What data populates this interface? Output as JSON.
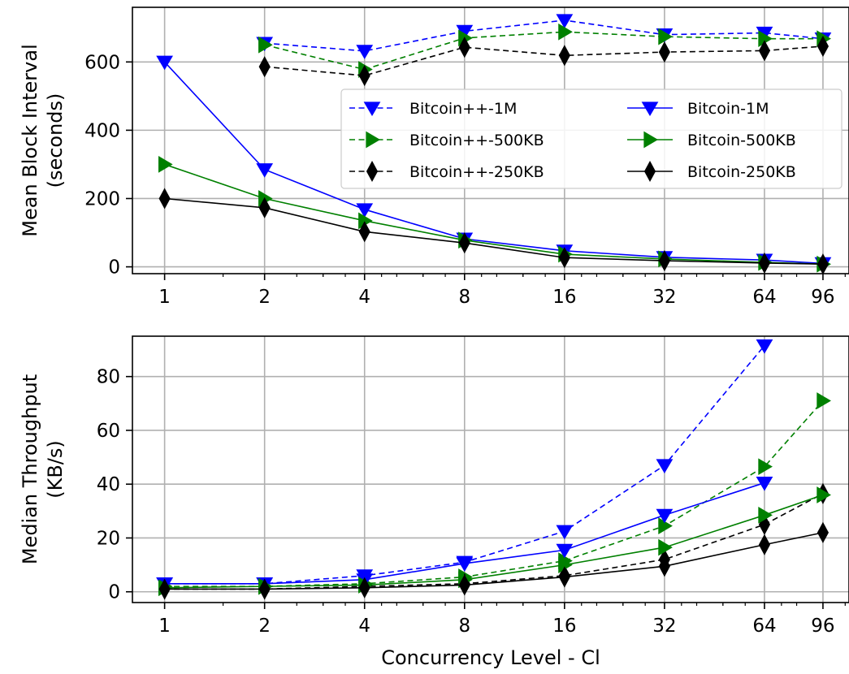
{
  "chart_data": [
    {
      "type": "line",
      "xscale": "log2",
      "x": [
        1,
        2,
        4,
        8,
        16,
        32,
        64,
        96
      ],
      "xticks": [
        "1",
        "2",
        "4",
        "8",
        "16",
        "32",
        "64",
        "96"
      ],
      "ylabel_line1": "Mean Block Interval",
      "ylabel_line2": "(seconds)",
      "xlabel": "",
      "ylim": [
        -20,
        760
      ],
      "yticks": [
        "0",
        "200",
        "400",
        "600"
      ],
      "grid": true,
      "legend_position": "center-right",
      "series": [
        {
          "name": "Bitcoin++-1M",
          "style": "dashed",
          "marker": "triangle-down",
          "color": "#0000ff",
          "x": [
            2,
            4,
            8,
            16,
            32,
            64,
            96
          ],
          "values": [
            655,
            632,
            690,
            722,
            680,
            685,
            668
          ]
        },
        {
          "name": "Bitcoin++-500KB",
          "style": "dashed",
          "marker": "triangle-right",
          "color": "#008000",
          "x": [
            2,
            4,
            8,
            16,
            32,
            64,
            96
          ],
          "values": [
            650,
            578,
            670,
            688,
            674,
            668,
            668
          ]
        },
        {
          "name": "Bitcoin++-250KB",
          "style": "dashed",
          "marker": "thin-diamond",
          "color": "#000000",
          "x": [
            2,
            4,
            8,
            16,
            32,
            64,
            96
          ],
          "values": [
            586,
            560,
            643,
            619,
            629,
            633,
            646
          ]
        },
        {
          "name": "Bitcoin-1M",
          "style": "solid",
          "marker": "triangle-down",
          "color": "#0000ff",
          "x": [
            1,
            2,
            4,
            8,
            16,
            32,
            64,
            96
          ],
          "values": [
            600,
            285,
            168,
            82,
            47,
            28,
            20,
            10
          ]
        },
        {
          "name": "Bitcoin-500KB",
          "style": "solid",
          "marker": "triangle-right",
          "color": "#008000",
          "x": [
            1,
            2,
            4,
            8,
            16,
            32,
            64,
            96
          ],
          "values": [
            300,
            200,
            135,
            78,
            37,
            23,
            13,
            8
          ]
        },
        {
          "name": "Bitcoin-250KB",
          "style": "solid",
          "marker": "thin-diamond",
          "color": "#000000",
          "x": [
            1,
            2,
            4,
            8,
            16,
            32,
            64,
            96
          ],
          "values": [
            200,
            173,
            103,
            70,
            27,
            18,
            11,
            8
          ]
        }
      ]
    },
    {
      "type": "line",
      "xscale": "log2",
      "x": [
        1,
        2,
        4,
        8,
        16,
        32,
        64,
        96
      ],
      "xticks": [
        "1",
        "2",
        "4",
        "8",
        "16",
        "32",
        "64",
        "96"
      ],
      "ylabel_line1": "Median Throughput",
      "ylabel_line2": "(KB/s)",
      "xlabel": "Concurrency Level - Cl",
      "ylim": [
        -4,
        95
      ],
      "yticks": [
        "0",
        "20",
        "40",
        "60",
        "80"
      ],
      "grid": true,
      "series": [
        {
          "name": "Bitcoin++-1M",
          "style": "dashed",
          "marker": "triangle-down",
          "color": "#0000ff",
          "x": [
            1,
            2,
            4,
            8,
            16,
            32,
            64
          ],
          "values": [
            3,
            3,
            6,
            11,
            22.5,
            47,
            91.5
          ]
        },
        {
          "name": "Bitcoin++-500KB",
          "style": "dashed",
          "marker": "triangle-right",
          "color": "#008000",
          "x": [
            1,
            2,
            4,
            8,
            16,
            32,
            64,
            96
          ],
          "values": [
            2,
            2,
            3,
            5.5,
            11.5,
            24.5,
            46.5,
            71
          ]
        },
        {
          "name": "Bitcoin++-250KB",
          "style": "dashed",
          "marker": "thin-diamond",
          "color": "#000000",
          "x": [
            1,
            2,
            4,
            8,
            16,
            32,
            64,
            96
          ],
          "values": [
            1,
            1,
            2,
            3,
            6,
            12,
            25,
            36.5
          ]
        },
        {
          "name": "Bitcoin-1M",
          "style": "solid",
          "marker": "triangle-down",
          "color": "#0000ff",
          "x": [
            1,
            2,
            4,
            8,
            16,
            32,
            64
          ],
          "values": [
            3,
            3,
            4.5,
            10.5,
            15.5,
            28.5,
            40.5
          ]
        },
        {
          "name": "Bitcoin-500KB",
          "style": "solid",
          "marker": "triangle-right",
          "color": "#008000",
          "x": [
            1,
            2,
            4,
            8,
            16,
            32,
            64,
            96
          ],
          "values": [
            1.5,
            2,
            2.5,
            4.5,
            10,
            16.5,
            28.5,
            36
          ]
        },
        {
          "name": "Bitcoin-250KB",
          "style": "solid",
          "marker": "thin-diamond",
          "color": "#000000",
          "x": [
            1,
            2,
            4,
            8,
            16,
            32,
            64,
            96
          ],
          "values": [
            1,
            1,
            1.5,
            2.5,
            5.5,
            9.5,
            17.5,
            22
          ]
        }
      ]
    }
  ]
}
